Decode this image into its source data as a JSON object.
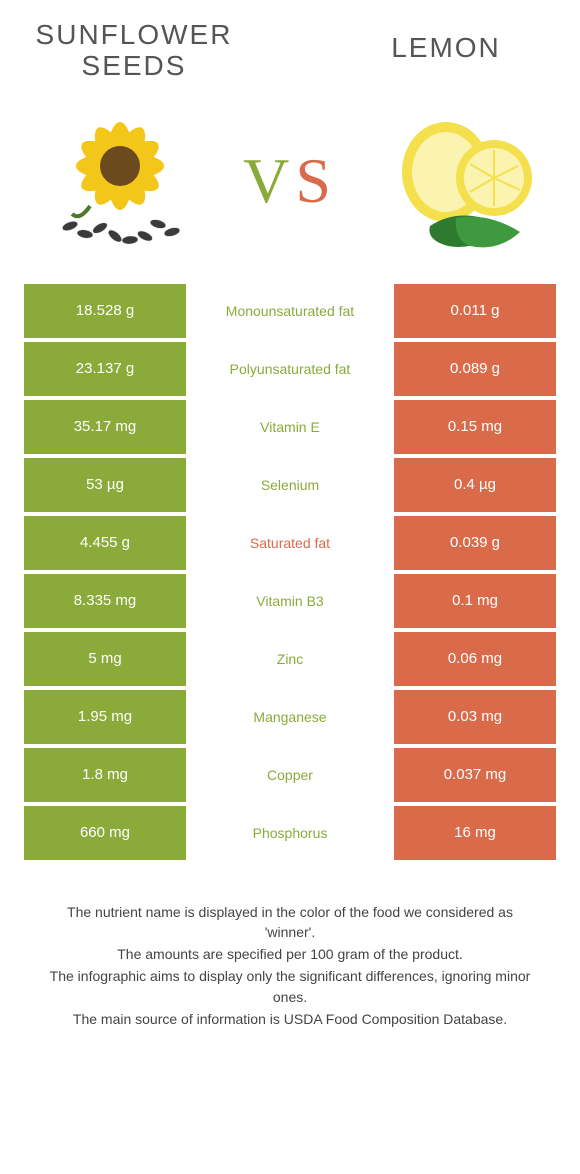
{
  "left": {
    "title": "SUNFLOWER SEEDS"
  },
  "right": {
    "title": "LEMON"
  },
  "vs": "VS",
  "colors": {
    "green": "#8aab3a",
    "orange": "#d96b4a"
  },
  "rows": [
    {
      "l": "18.528 g",
      "m": "Monounsaturated fat",
      "r": "0.011 g",
      "winner": "green"
    },
    {
      "l": "23.137 g",
      "m": "Polyunsaturated fat",
      "r": "0.089 g",
      "winner": "green"
    },
    {
      "l": "35.17 mg",
      "m": "Vitamin E",
      "r": "0.15 mg",
      "winner": "green"
    },
    {
      "l": "53 µg",
      "m": "Selenium",
      "r": "0.4 µg",
      "winner": "green"
    },
    {
      "l": "4.455 g",
      "m": "Saturated fat",
      "r": "0.039 g",
      "winner": "orange"
    },
    {
      "l": "8.335 mg",
      "m": "Vitamin B3",
      "r": "0.1 mg",
      "winner": "green"
    },
    {
      "l": "5 mg",
      "m": "Zinc",
      "r": "0.06 mg",
      "winner": "green"
    },
    {
      "l": "1.95 mg",
      "m": "Manganese",
      "r": "0.03 mg",
      "winner": "green"
    },
    {
      "l": "1.8 mg",
      "m": "Copper",
      "r": "0.037 mg",
      "winner": "green"
    },
    {
      "l": "660 mg",
      "m": "Phosphorus",
      "r": "16 mg",
      "winner": "green"
    }
  ],
  "footer": [
    "The nutrient name is displayed in the color of the food we considered as 'winner'.",
    "The amounts are specified per 100 gram of the product.",
    "The infographic aims to display only the significant differences, ignoring minor ones.",
    "The main source of information is USDA Food Composition Database."
  ]
}
